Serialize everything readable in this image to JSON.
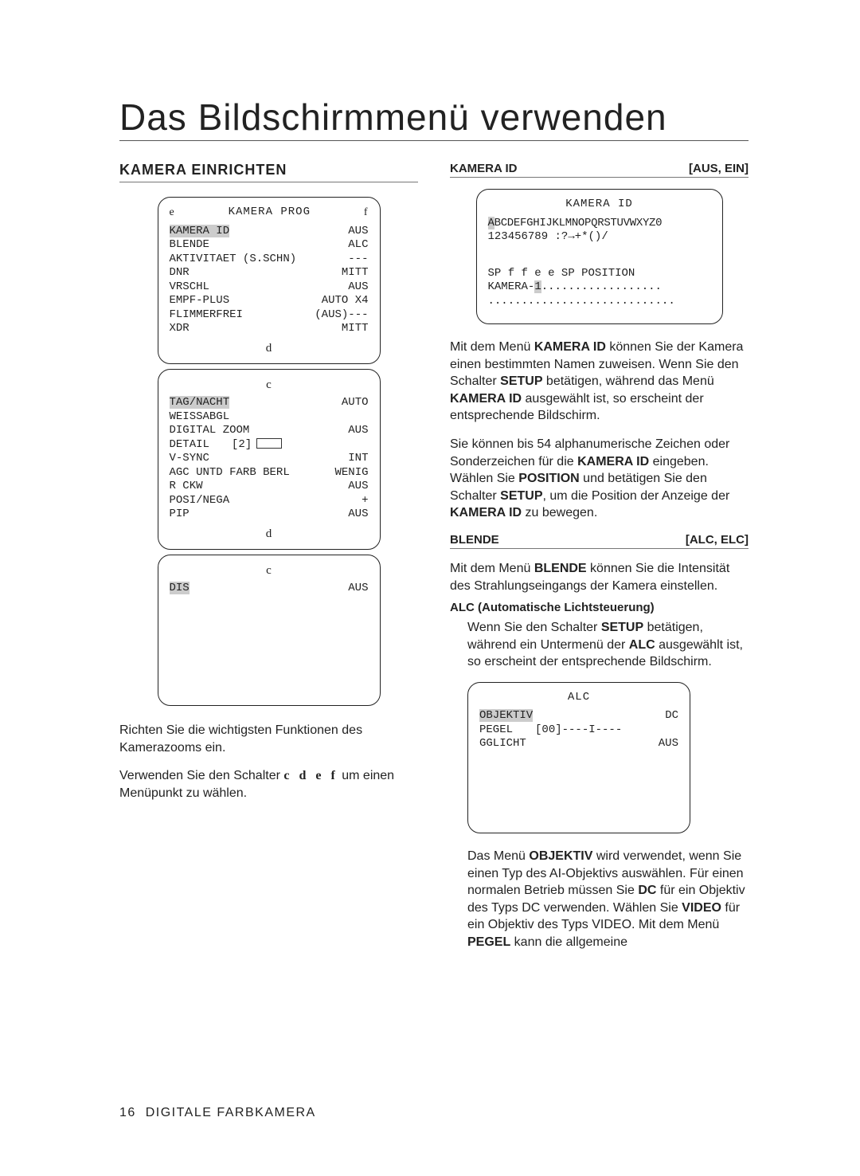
{
  "title": "Das Bildschirmmenü verwenden",
  "left": {
    "heading": "KAMERA EINRICHTEN",
    "box1": {
      "title_left": "e",
      "title_center": "KAMERA PROG",
      "title_right": "f",
      "rows": [
        {
          "l": "KAMERA ID",
          "r": "AUS",
          "hl": true
        },
        {
          "l": "BLENDE",
          "r": "ALC"
        },
        {
          "l": "AKTIVITAET (S.SCHN)",
          "r": "---"
        },
        {
          "l": "DNR",
          "r": "MITT"
        },
        {
          "l": "VRSCHL",
          "r": "AUS"
        },
        {
          "l": "EMPF-PLUS",
          "r": "AUTO X4"
        },
        {
          "l": "FLIMMERFREI",
          "r": "(AUS)---"
        },
        {
          "l": "XDR",
          "r": "MITT"
        }
      ],
      "foot": "d"
    },
    "box2": {
      "head": "c",
      "rows": [
        {
          "l": "TAG/NACHT",
          "r": "AUTO",
          "hl": true
        },
        {
          "l": "WEISSABGL",
          "r": ""
        },
        {
          "l": "DIGITAL ZOOM",
          "r": "AUS"
        },
        {
          "l": "DETAIL",
          "mid": "[2]",
          "box": true
        },
        {
          "l": "V-SYNC",
          "r": "INT"
        },
        {
          "l": "AGC UNTD FARB BERL",
          "r": "WENIG"
        },
        {
          "l": "R CKW",
          "r": "AUS"
        },
        {
          "l": "POSI/NEGA",
          "r": "+"
        },
        {
          "l": "PIP",
          "r": "AUS"
        }
      ],
      "foot": "d"
    },
    "box3": {
      "head": "c",
      "rows": [
        {
          "l": "DIS",
          "r": "AUS",
          "hl": true
        }
      ]
    },
    "para1": "Richten Sie die wichtigsten Funktionen des Kamerazooms ein.",
    "para2_a": "Verwenden Sie den Schalter ",
    "para2_switch": "c d e f",
    "para2_b": " um einen Menüpunkt zu wählen."
  },
  "right": {
    "sec1": {
      "heading_l": "KAMERA ID",
      "heading_r": "[AUS, EIN]",
      "box": {
        "title": "KAMERA ID",
        "line1": "ABCDEFGHIJKLMNOPQRSTUVWXYZ0",
        "line1_hl": "A",
        "line2": "123456789 :?→+*()/",
        "line3": "SP f f e e  SP POSITION",
        "line4": "KAMERA-1..................",
        "line4_hl_off": 7,
        "line5": "............................"
      },
      "para1_parts": [
        "Mit dem Menü ",
        {
          "b": "KAMERA ID"
        },
        " können Sie der Kamera einen bestimmten Namen zuweisen. Wenn Sie den Schalter ",
        {
          "b": "SETUP"
        },
        " betätigen, während das Menü ",
        {
          "b": "KAMERA ID"
        },
        " ausgewählt ist, so erscheint der entsprechende Bildschirm."
      ],
      "para2_parts": [
        "Sie können bis 54 alphanumerische Zeichen oder Sonderzeichen für die ",
        {
          "b": "KAMERA ID"
        },
        " eingeben. Wählen Sie ",
        {
          "b": "POSITION"
        },
        " und betätigen Sie den Schalter ",
        {
          "b": "SETUP"
        },
        ", um die Position der Anzeige der ",
        {
          "b": "KAMERA ID"
        },
        " zu bewegen."
      ]
    },
    "sec2": {
      "heading_l": "BLENDE",
      "heading_r": "[ALC, ELC]",
      "para_parts": [
        "Mit dem Menü ",
        {
          "b": "BLENDE"
        },
        " können Sie die Intensität des Strahlungseingangs der Kamera einstellen."
      ],
      "sub_heading": "ALC (Automatische Lichtsteuerung)",
      "sub_para_parts": [
        "Wenn Sie den Schalter ",
        {
          "b": "SETUP"
        },
        " betätigen, während ein Untermenü der ",
        {
          "b": "ALC"
        },
        " ausgewählt ist, so erscheint der entsprechende Bildschirm."
      ],
      "box": {
        "title": "ALC",
        "rows": [
          {
            "l": "OBJEKTIV",
            "r": "DC",
            "hl": true
          },
          {
            "l": "PEGEL",
            "mid": "[00]----I----"
          },
          {
            "l": "GGLICHT",
            "r": "AUS"
          }
        ]
      },
      "para2_parts": [
        "Das Menü ",
        {
          "b": "OBJEKTIV"
        },
        " wird verwendet, wenn Sie einen Typ des AI-Objektivs auswählen. Für einen normalen Betrieb müssen Sie ",
        {
          "b": "DC"
        },
        " für ein Objektiv des Typs DC verwenden. Wählen Sie ",
        {
          "b": "VIDEO"
        },
        " für ein Objektiv des Typs VIDEO. Mit dem Menü ",
        {
          "b": "PEGEL"
        },
        " kann die allgemeine"
      ]
    }
  },
  "footer": {
    "page": "16",
    "label": "DIGITALE FARBKAMERA"
  }
}
